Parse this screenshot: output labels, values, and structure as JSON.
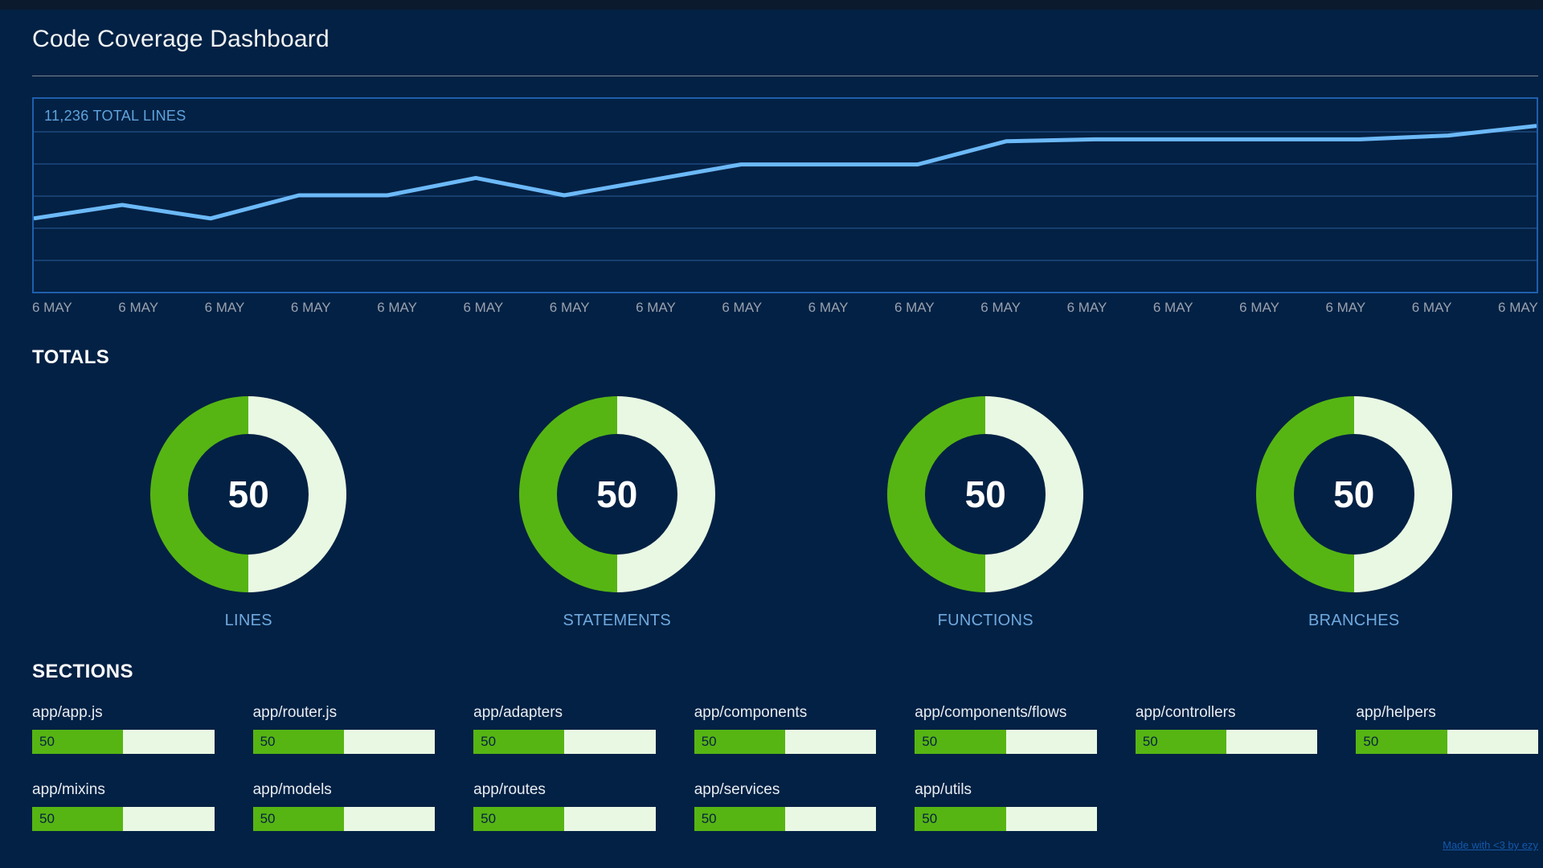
{
  "page": {
    "title": "Code Coverage Dashboard"
  },
  "colors": {
    "background": "#032144",
    "panel_border": "#1e5fad",
    "gridline": "#173f70",
    "line": "#6cb9f8",
    "chart_caption": "#5fa3de",
    "axis_label": "#99a1ae",
    "green": "#56b513",
    "pale_green": "#e9f8e3",
    "donut_label_blue": "#6fa9df",
    "footer_link_blue": "#1458ab"
  },
  "chart": {
    "caption": "11,236 TOTAL LINES",
    "x_labels": [
      "6 MAY",
      "6 MAY",
      "6 MAY",
      "6 MAY",
      "6 MAY",
      "6 MAY",
      "6 MAY",
      "6 MAY",
      "6 MAY",
      "6 MAY",
      "6 MAY",
      "6 MAY",
      "6 MAY",
      "6 MAY",
      "6 MAY",
      "6 MAY",
      "6 MAY",
      "6 MAY"
    ],
    "values_pct": [
      38,
      45,
      38,
      50,
      50,
      59,
      50,
      58,
      66,
      66,
      66,
      78,
      79,
      79,
      79,
      79,
      81,
      86
    ]
  },
  "totals": {
    "heading": "TOTALS",
    "items": [
      {
        "label": "LINES",
        "value": 50
      },
      {
        "label": "STATEMENTS",
        "value": 50
      },
      {
        "label": "FUNCTIONS",
        "value": 50
      },
      {
        "label": "BRANCHES",
        "value": 50
      }
    ]
  },
  "sections": {
    "heading": "SECTIONS",
    "items": [
      {
        "label": "app/app.js",
        "value": 50
      },
      {
        "label": "app/router.js",
        "value": 50
      },
      {
        "label": "app/adapters",
        "value": 50
      },
      {
        "label": "app/components",
        "value": 50
      },
      {
        "label": "app/components/flows",
        "value": 50
      },
      {
        "label": "app/controllers",
        "value": 50
      },
      {
        "label": "app/helpers",
        "value": 50
      },
      {
        "label": "app/mixins",
        "value": 50
      },
      {
        "label": "app/models",
        "value": 50
      },
      {
        "label": "app/routes",
        "value": 50
      },
      {
        "label": "app/services",
        "value": 50
      },
      {
        "label": "app/utils",
        "value": 50
      }
    ]
  },
  "footer": {
    "credit": "Made with <3 by ezy"
  },
  "chart_data": [
    {
      "type": "line",
      "title": "11,236 TOTAL LINES",
      "x": [
        "6 MAY",
        "6 MAY",
        "6 MAY",
        "6 MAY",
        "6 MAY",
        "6 MAY",
        "6 MAY",
        "6 MAY",
        "6 MAY",
        "6 MAY",
        "6 MAY",
        "6 MAY",
        "6 MAY",
        "6 MAY",
        "6 MAY",
        "6 MAY",
        "6 MAY",
        "6 MAY"
      ],
      "series": [
        {
          "name": "Total lines",
          "values_pct_of_plot_height": [
            38,
            45,
            38,
            50,
            50,
            59,
            50,
            58,
            66,
            66,
            66,
            78,
            79,
            79,
            79,
            79,
            81,
            86
          ]
        }
      ],
      "xlabel": "",
      "ylabel": "",
      "grid": true,
      "legend": false,
      "note": "y-axis has no tick labels; series rises overall, ending at 11,236 total lines"
    },
    {
      "type": "pie",
      "title": "TOTALS coverage donuts",
      "gauges": [
        {
          "label": "LINES",
          "percent": 50
        },
        {
          "label": "STATEMENTS",
          "percent": 50
        },
        {
          "label": "FUNCTIONS",
          "percent": 50
        },
        {
          "label": "BRANCHES",
          "percent": 50
        }
      ]
    },
    {
      "type": "bar",
      "title": "SECTIONS coverage",
      "categories": [
        "app/app.js",
        "app/router.js",
        "app/adapters",
        "app/components",
        "app/components/flows",
        "app/controllers",
        "app/helpers",
        "app/mixins",
        "app/models",
        "app/routes",
        "app/services",
        "app/utils"
      ],
      "values": [
        50,
        50,
        50,
        50,
        50,
        50,
        50,
        50,
        50,
        50,
        50,
        50
      ],
      "xlim": [
        0,
        100
      ]
    }
  ]
}
